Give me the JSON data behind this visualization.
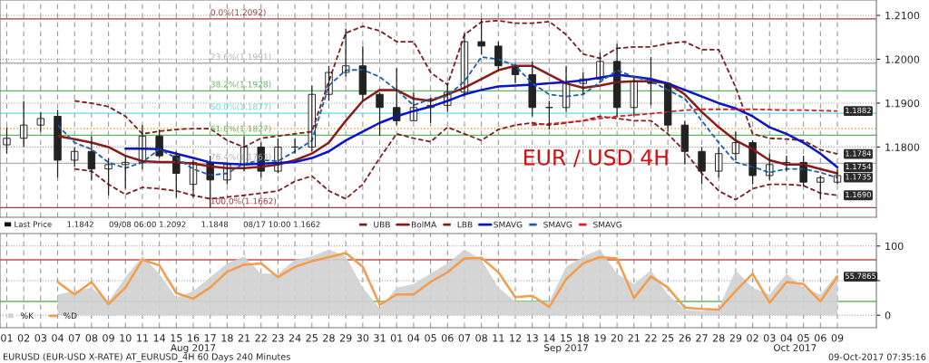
{
  "chart_data": [
    {
      "type": "candlestick",
      "categories": [
        "01",
        "02",
        "03",
        "04",
        "07",
        "08",
        "09",
        "10",
        "11",
        "14",
        "15",
        "16",
        "17",
        "18",
        "21",
        "22",
        "23",
        "24",
        "25",
        "28",
        "29",
        "30",
        "31",
        "01",
        "04",
        "05",
        "06",
        "07",
        "08",
        "11",
        "12",
        "13",
        "14",
        "15",
        "18",
        "19",
        "20",
        "21",
        "22",
        "25",
        "26",
        "27",
        "28",
        "29",
        "02",
        "03",
        "04",
        "05",
        "06",
        "09"
      ],
      "ohlc": [
        [
          1.1805,
          1.1845,
          1.1785,
          1.182
        ],
        [
          1.182,
          1.1905,
          1.18,
          1.185
        ],
        [
          1.185,
          1.188,
          1.1835,
          1.1865
        ],
        [
          1.187,
          1.1885,
          1.173,
          1.177
        ],
        [
          1.177,
          1.18,
          1.1755,
          1.179
        ],
        [
          1.179,
          1.1825,
          1.1725,
          1.175
        ],
        [
          1.175,
          1.1775,
          1.169,
          1.176
        ],
        [
          1.176,
          1.178,
          1.1705,
          1.1765
        ],
        [
          1.1765,
          1.185,
          1.175,
          1.1825
        ],
        [
          1.1825,
          1.184,
          1.1775,
          1.178
        ],
        [
          1.178,
          1.179,
          1.1685,
          1.174
        ],
        [
          1.1715,
          1.177,
          1.1685,
          1.1765
        ],
        [
          1.1765,
          1.178,
          1.1662,
          1.1725
        ],
        [
          1.1725,
          1.1765,
          1.1715,
          1.176
        ],
        [
          1.176,
          1.1825,
          1.1745,
          1.18
        ],
        [
          1.18,
          1.181,
          1.173,
          1.1745
        ],
        [
          1.1745,
          1.182,
          1.174,
          1.18
        ],
        [
          1.18,
          1.182,
          1.1785,
          1.18
        ],
        [
          1.18,
          1.194,
          1.179,
          1.192
        ],
        [
          1.192,
          1.1985,
          1.1905,
          1.197
        ],
        [
          1.197,
          1.207,
          1.196,
          1.1985
        ],
        [
          1.1985,
          1.203,
          1.1905,
          1.192
        ],
        [
          1.192,
          1.1925,
          1.1825,
          1.189
        ],
        [
          1.189,
          1.198,
          1.185,
          1.186
        ],
        [
          1.186,
          1.1925,
          1.186,
          1.189
        ],
        [
          1.189,
          1.191,
          1.1855,
          1.1895
        ],
        [
          1.1895,
          1.1945,
          1.188,
          1.1925
        ],
        [
          1.1925,
          1.206,
          1.1915,
          1.204
        ],
        [
          1.204,
          1.2092,
          1.201,
          1.203
        ],
        [
          1.203,
          1.204,
          1.1975,
          1.1985
        ],
        [
          1.1985,
          1.199,
          1.1945,
          1.1965
        ],
        [
          1.1965,
          1.1995,
          1.187,
          1.189
        ],
        [
          1.189,
          1.1905,
          1.184,
          1.189
        ],
        [
          1.189,
          1.1985,
          1.188,
          1.1945
        ],
        [
          1.1945,
          1.197,
          1.192,
          1.1955
        ],
        [
          1.1955,
          1.2015,
          1.195,
          1.1995
        ],
        [
          1.1995,
          1.2035,
          1.187,
          1.189
        ],
        [
          1.189,
          1.196,
          1.187,
          1.195
        ],
        [
          1.195,
          1.2005,
          1.1895,
          1.1945
        ],
        [
          1.1945,
          1.1945,
          1.1835,
          1.185
        ],
        [
          1.185,
          1.186,
          1.176,
          1.179
        ],
        [
          1.179,
          1.18,
          1.1715,
          1.1745
        ],
        [
          1.1745,
          1.18,
          1.173,
          1.1785
        ],
        [
          1.1785,
          1.1835,
          1.177,
          1.181
        ],
        [
          1.181,
          1.1815,
          1.1715,
          1.1735
        ],
        [
          1.1735,
          1.1785,
          1.1725,
          1.176
        ],
        [
          1.176,
          1.178,
          1.1745,
          1.1765
        ],
        [
          1.1765,
          1.178,
          1.171,
          1.172
        ],
        [
          1.172,
          1.1735,
          1.168,
          1.173
        ],
        [
          1.172,
          1.175,
          1.1715,
          1.1735
        ]
      ],
      "series": [
        {
          "name": "UBB",
          "type": "line",
          "color": "#7b1f1f",
          "line_style": "dashed",
          "values": [
            null,
            null,
            null,
            null,
            1.1905,
            1.19,
            1.1892,
            1.187,
            1.183,
            1.1836,
            1.184,
            1.1842,
            1.1842,
            1.1815,
            1.18,
            1.182,
            1.1825,
            1.183,
            1.1835,
            1.195,
            1.206,
            1.2075,
            1.2065,
            1.204,
            1.204,
            1.197,
            1.1942,
            1.2056,
            1.2085,
            1.2088,
            1.2082,
            1.2082,
            1.2086,
            1.2056,
            1.2012,
            1.2002,
            1.2025,
            1.2028,
            1.2028,
            1.2036,
            1.204,
            1.2022,
            1.2022,
            1.1936,
            1.183,
            1.182,
            1.1818,
            1.1815,
            1.1794,
            1.1784
          ],
          "value_labels": [
            null,
            null,
            null,
            null,
            null,
            null,
            null,
            null,
            null,
            null,
            null,
            null,
            null,
            null,
            null,
            null,
            null,
            null,
            null,
            null,
            null,
            null,
            null,
            null,
            null,
            null,
            null,
            null,
            null,
            null,
            null,
            null,
            null,
            null,
            null,
            null,
            null,
            null,
            null,
            null,
            null,
            null,
            null,
            null,
            null,
            null,
            null,
            null,
            null,
            "1.1784"
          ]
        },
        {
          "name": "BolMA",
          "type": "line",
          "color": "#8b1a1a",
          "line_style": "solid",
          "values": [
            null,
            null,
            null,
            1.1825,
            1.1818,
            1.181,
            1.18,
            1.178,
            1.1768,
            1.1766,
            1.1766,
            1.1762,
            1.1756,
            1.1752,
            1.1752,
            1.1755,
            1.176,
            1.177,
            1.1785,
            1.181,
            1.186,
            1.1905,
            1.193,
            1.193,
            1.191,
            1.1905,
            1.192,
            1.1935,
            1.1955,
            1.1975,
            1.1985,
            1.1985,
            1.1965,
            1.1945,
            1.1935,
            1.194,
            1.1948,
            1.195,
            1.195,
            1.1945,
            1.192,
            1.188,
            1.1845,
            1.1815,
            1.1795,
            1.177,
            1.176,
            1.176,
            1.175,
            1.174
          ]
        },
        {
          "name": "LBB",
          "type": "line",
          "color": "#7b1f1f",
          "line_style": "dashed",
          "values": [
            null,
            null,
            null,
            null,
            1.175,
            1.1745,
            1.1715,
            1.1692,
            1.1708,
            1.1705,
            1.17,
            1.169,
            1.1682,
            1.1686,
            1.169,
            1.1695,
            1.17,
            1.1722,
            1.1734,
            1.17,
            1.1682,
            1.1715,
            1.1775,
            1.183,
            1.182,
            1.1812,
            1.1845,
            1.183,
            1.1815,
            1.184,
            1.185,
            1.1855,
            1.185,
            1.1855,
            1.186,
            1.187,
            1.1865,
            1.186,
            1.186,
            1.183,
            1.179,
            1.174,
            1.17,
            1.168,
            1.1705,
            1.1715,
            1.1715,
            1.1712,
            1.1695,
            1.169
          ],
          "value_labels": [
            null,
            null,
            null,
            null,
            null,
            null,
            null,
            null,
            null,
            null,
            null,
            null,
            null,
            null,
            null,
            null,
            null,
            null,
            null,
            null,
            null,
            null,
            null,
            null,
            null,
            null,
            null,
            null,
            null,
            null,
            null,
            null,
            null,
            null,
            null,
            null,
            null,
            null,
            null,
            null,
            null,
            null,
            null,
            null,
            null,
            null,
            null,
            null,
            null,
            "1.1690"
          ]
        },
        {
          "name": "SMAVG",
          "type": "line",
          "color": "#0a14c8",
          "line_style": "solid",
          "values": [
            null,
            null,
            null,
            null,
            null,
            null,
            null,
            1.1796,
            1.1796,
            1.1795,
            1.1785,
            1.1775,
            1.1765,
            1.1762,
            1.176,
            1.1762,
            1.1764,
            1.1766,
            1.1775,
            1.179,
            1.1815,
            1.1835,
            1.1855,
            1.187,
            1.1882,
            1.1892,
            1.1905,
            1.192,
            1.193,
            1.1938,
            1.194,
            1.1942,
            1.1945,
            1.1948,
            1.1952,
            1.1958,
            1.1965,
            1.196,
            1.1955,
            1.1945,
            1.193,
            1.1915,
            1.19,
            1.1888,
            1.187,
            1.1845,
            1.183,
            1.181,
            1.1785,
            1.1754
          ],
          "value_labels": [
            null,
            null,
            null,
            null,
            null,
            null,
            null,
            null,
            null,
            null,
            null,
            null,
            null,
            null,
            null,
            null,
            null,
            null,
            null,
            null,
            null,
            null,
            null,
            null,
            null,
            null,
            null,
            null,
            null,
            null,
            null,
            null,
            null,
            null,
            null,
            null,
            null,
            null,
            null,
            null,
            null,
            null,
            null,
            null,
            null,
            null,
            null,
            null,
            null,
            "1.1754"
          ]
        },
        {
          "name": "SMAVG",
          "type": "line",
          "color": "#1f5fa8",
          "line_style": "dashed",
          "values": [
            null,
            null,
            null,
            1.185,
            1.181,
            1.1795,
            1.1765,
            1.1752,
            1.1765,
            1.1795,
            1.1775,
            1.175,
            1.1736,
            1.174,
            1.1762,
            1.177,
            1.1768,
            1.179,
            1.1815,
            1.194,
            1.1975,
            1.1976,
            1.196,
            1.193,
            1.1895,
            1.191,
            1.1916,
            1.195,
            1.2005,
            1.2,
            1.1985,
            1.1945,
            1.192,
            1.1915,
            1.192,
            1.1948,
            1.1975,
            1.196,
            1.195,
            1.193,
            1.191,
            1.186,
            1.181,
            1.1765,
            1.1755,
            1.1742,
            1.175,
            1.175,
            1.1742,
            1.173
          ]
        },
        {
          "name": "SMAVG",
          "type": "line",
          "color": "#e01c1c",
          "line_style": "dashed",
          "values": [
            null,
            null,
            null,
            null,
            null,
            null,
            null,
            null,
            null,
            null,
            null,
            null,
            null,
            null,
            null,
            null,
            null,
            null,
            null,
            null,
            null,
            null,
            null,
            null,
            null,
            null,
            null,
            null,
            null,
            null,
            null,
            1.185,
            1.1853,
            1.1856,
            1.186,
            1.1865,
            1.187,
            1.1873,
            1.1876,
            1.188,
            1.1884,
            1.1886,
            1.1886,
            1.1886,
            1.1886,
            1.1885,
            1.1884,
            1.1884,
            1.1883,
            1.1882
          ],
          "value_labels": [
            null,
            null,
            null,
            null,
            null,
            null,
            null,
            null,
            null,
            null,
            null,
            null,
            null,
            null,
            null,
            null,
            null,
            null,
            null,
            null,
            null,
            null,
            null,
            null,
            null,
            null,
            null,
            null,
            null,
            null,
            null,
            null,
            null,
            null,
            null,
            null,
            null,
            null,
            null,
            null,
            null,
            null,
            null,
            null,
            null,
            null,
            null,
            null,
            null,
            "1.1882"
          ]
        }
      ],
      "ylim": [
        1.164,
        1.2135
      ],
      "yticks": [
        {
          "value": 1.21,
          "label": "1.2100"
        },
        {
          "value": 1.2,
          "label": "1.2000"
        },
        {
          "value": 1.19,
          "label": "1.1900"
        },
        {
          "value": 1.18,
          "label": "1.1800"
        }
      ],
      "tick_labels": "y",
      "grid": true,
      "legend": "bottom",
      "ref_lines": [
        {
          "axis": "y",
          "value": 1.2092,
          "label": "0.0%(1.2092)",
          "color": "#a0403f"
        },
        {
          "axis": "y",
          "value": 1.1991,
          "label": "23.6%(1.1991)",
          "color": "#b0b0b0"
        },
        {
          "axis": "y",
          "value": 1.1928,
          "label": "38.2%(1.1928)",
          "color": "#5cb85c"
        },
        {
          "axis": "y",
          "value": 1.1877,
          "label": "50.0%(1.1877)",
          "color": "#66d9e8"
        },
        {
          "axis": "y",
          "value": 1.1827,
          "label": "61.8%(1.1827)",
          "color": "#5cb85c"
        },
        {
          "axis": "y",
          "value": 1.1763,
          "label": "76.4%(1.1763)",
          "color": "#b0b0b0"
        },
        {
          "axis": "y",
          "value": 1.1662,
          "label": "100.0%(1.1662)",
          "color": "#a0403f"
        },
        {
          "axis": "y",
          "value": 1.1842,
          "color": "#f0a030",
          "line_style": "dotted"
        }
      ],
      "annotations": [
        "EUR / USD 4H",
        "1.1735",
        "Last Price",
        "1.1842",
        "09/08 06:00 1.2092",
        "1.1848",
        "08/17 10:00 1.1662"
      ]
    },
    {
      "type": "line",
      "categories": [
        "01",
        "02",
        "03",
        "04",
        "07",
        "08",
        "09",
        "10",
        "11",
        "14",
        "15",
        "16",
        "17",
        "18",
        "21",
        "22",
        "23",
        "24",
        "25",
        "28",
        "29",
        "30",
        "31",
        "01",
        "04",
        "05",
        "06",
        "07",
        "08",
        "11",
        "12",
        "13",
        "14",
        "15",
        "18",
        "19",
        "20",
        "21",
        "22",
        "25",
        "26",
        "27",
        "28",
        "29",
        "02",
        "03",
        "04",
        "05",
        "06",
        "09"
      ],
      "series": [
        {
          "name": "%K",
          "type": "area",
          "color": "#d0d0d0",
          "values": [
            null,
            null,
            null,
            30,
            35,
            40,
            20,
            55,
            85,
            60,
            25,
            35,
            55,
            75,
            85,
            60,
            60,
            80,
            85,
            95,
            85,
            40,
            10,
            40,
            45,
            60,
            75,
            95,
            80,
            40,
            20,
            20,
            20,
            70,
            85,
            95,
            60,
            45,
            65,
            30,
            8,
            6,
            10,
            65,
            40,
            30,
            60,
            40,
            30,
            60
          ]
        },
        {
          "name": "%D",
          "type": "line",
          "color": "#f39c4a",
          "values": [
            null,
            null,
            null,
            48,
            30,
            48,
            16,
            40,
            80,
            72,
            32,
            24,
            40,
            63,
            73,
            75,
            55,
            70,
            78,
            84,
            90,
            70,
            15,
            30,
            30,
            48,
            62,
            82,
            83,
            62,
            26,
            28,
            12,
            52,
            75,
            84,
            82,
            25,
            56,
            40,
            11,
            9,
            8,
            35,
            60,
            18,
            48,
            45,
            20,
            55.7865
          ],
          "value_labels": [
            null,
            null,
            null,
            null,
            null,
            null,
            null,
            null,
            null,
            null,
            null,
            null,
            null,
            null,
            null,
            null,
            null,
            null,
            null,
            null,
            null,
            null,
            null,
            null,
            null,
            null,
            null,
            null,
            null,
            null,
            null,
            null,
            null,
            null,
            null,
            null,
            null,
            null,
            null,
            null,
            null,
            null,
            null,
            null,
            null,
            null,
            null,
            null,
            null,
            "55.7865"
          ]
        }
      ],
      "ylim": [
        -18,
        118
      ],
      "yticks": [
        100,
        {
          "value": 50,
          "label": null
        },
        0
      ],
      "grid": true,
      "legend": "bottom left",
      "ref_lines": [
        {
          "axis": "y",
          "value": 80,
          "color": "#c0504d"
        },
        {
          "axis": "y",
          "value": 20,
          "color": "#5cb85c"
        }
      ],
      "annotations": [
        "EURUSD (EUR-USD X-RATE) AT_EURUSD_4H 60 Days 240 Minutes",
        "09-Oct-2017 07:35:16",
        "Aug 2017",
        "Sep 2017",
        "Oct 2017"
      ]
    }
  ]
}
